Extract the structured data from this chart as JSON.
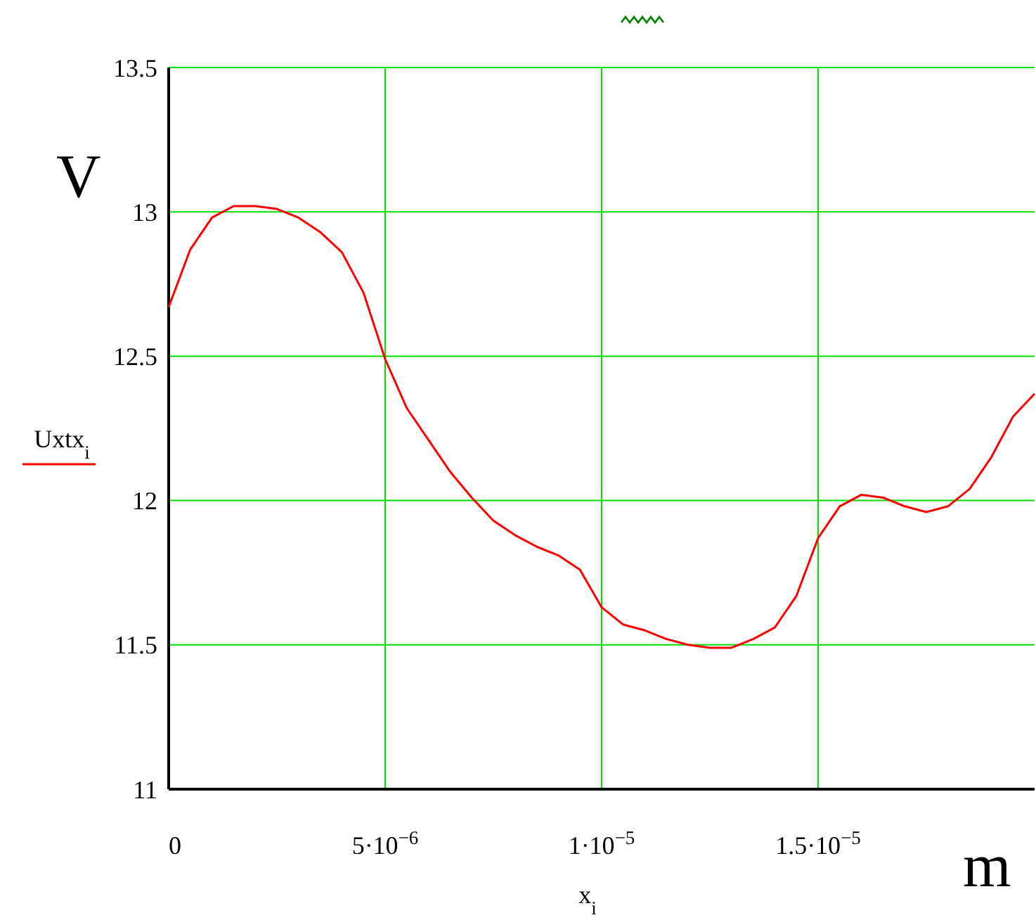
{
  "chart_data": {
    "type": "line",
    "xlabel": "x$_{i}$",
    "annotations": [
      "V",
      "m"
    ],
    "x": [
      0,
      5e-07,
      1e-06,
      1.5e-06,
      2e-06,
      2.5e-06,
      3e-06,
      3.5e-06,
      4e-06,
      4.5e-06,
      5e-06,
      5.5e-06,
      6e-06,
      6.5e-06,
      7e-06,
      7.5e-06,
      8e-06,
      8.5e-06,
      9e-06,
      9.5e-06,
      1e-05,
      1.05e-05,
      1.1e-05,
      1.15e-05,
      1.2e-05,
      1.25e-05,
      1.3e-05,
      1.35e-05,
      1.4e-05,
      1.45e-05,
      1.5e-05,
      1.55e-05,
      1.6e-05,
      1.65e-05,
      1.7e-05,
      1.75e-05,
      1.8e-05,
      1.85e-05,
      1.9e-05,
      1.95e-05,
      2e-05
    ],
    "series": [
      {
        "name": "Uxtx$_{i}$",
        "color": "#ff0000",
        "values": [
          12.67,
          12.87,
          12.98,
          13.02,
          13.02,
          13.01,
          12.98,
          12.93,
          12.86,
          12.72,
          12.49,
          12.32,
          12.21,
          12.1,
          12.01,
          11.93,
          11.88,
          11.84,
          11.81,
          11.76,
          11.63,
          11.57,
          11.55,
          11.52,
          11.5,
          11.49,
          11.49,
          11.52,
          11.56,
          11.67,
          11.87,
          11.98,
          12.02,
          12.01,
          11.98,
          11.96,
          11.98,
          12.04,
          12.15,
          12.29,
          12.37
        ]
      }
    ],
    "xlim": [
      0,
      2e-05
    ],
    "xticks": [
      0,
      {
        "value": 5e-06,
        "label": "5·10$^{−6}$"
      },
      {
        "value": 1e-05,
        "label": "1·10$^{−5}$"
      },
      {
        "value": 1.5e-05,
        "label": "1.5·10$^{−5}$"
      }
    ],
    "ylim": [
      11,
      13.5
    ],
    "yticks": [
      11,
      11.5,
      12,
      12.5,
      13,
      13.5
    ],
    "grid": true,
    "legend": "left",
    "line_style": "solid",
    "marker": "none"
  }
}
